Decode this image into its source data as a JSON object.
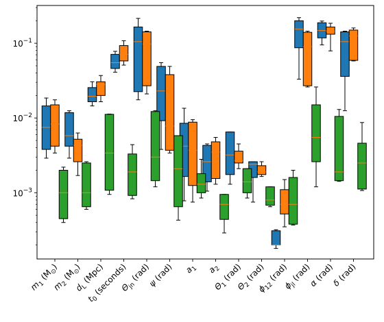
{
  "chart_data": {
    "type": "boxplot",
    "yscale": "log",
    "ylim": [
      0.00013,
      0.32
    ],
    "yticks": [
      {
        "value": 0.001,
        "base": "10",
        "exp": "−3"
      },
      {
        "value": 0.01,
        "base": "10",
        "exp": "−2"
      },
      {
        "value": 0.1,
        "base": "10",
        "exp": "−1"
      }
    ],
    "categories": [
      {
        "main": "m",
        "sub": "1",
        "rest": " (M",
        "sub2": "⊙",
        "end": ")"
      },
      {
        "main": "m",
        "sub": "2",
        "rest": " (M",
        "sub2": "⊙",
        "end": ")"
      },
      {
        "main": "d",
        "sub": "L",
        "rest": " (Mpc)",
        "sub2": "",
        "end": ""
      },
      {
        "main": "t",
        "sub": "0",
        "rest": " (seconds)",
        "sub2": "",
        "end": ""
      },
      {
        "main": "Θ",
        "sub": "jn",
        "rest": " (rad)",
        "sub2": "",
        "end": ""
      },
      {
        "main": "ψ",
        "sub": "",
        "rest": " (rad)",
        "sub2": "",
        "end": ""
      },
      {
        "main": "a",
        "sub": "1",
        "rest": "",
        "sub2": "",
        "end": ""
      },
      {
        "main": "a",
        "sub": "2",
        "rest": "",
        "sub2": "",
        "end": ""
      },
      {
        "main": "Θ",
        "sub": "1",
        "rest": " (rad)",
        "sub2": "",
        "end": ""
      },
      {
        "main": "Θ",
        "sub": "2",
        "rest": " (rad)",
        "sub2": "",
        "end": ""
      },
      {
        "main": "ϕ",
        "sub": "12",
        "rest": " (rad)",
        "sub2": "",
        "end": ""
      },
      {
        "main": "ϕ",
        "sub": "jl",
        "rest": " (rad)",
        "sub2": "",
        "end": ""
      },
      {
        "main": "α",
        "sub": "",
        "rest": " (rad)",
        "sub2": "",
        "end": ""
      },
      {
        "main": "δ",
        "sub": "",
        "rest": " (rad)",
        "sub2": "",
        "end": ""
      }
    ],
    "series": [
      {
        "color": "#1f77b4",
        "median_color": "#ff7f0e",
        "boxes": [
          {
            "whislo": 0.0029,
            "q1": 0.0038,
            "med": 0.0075,
            "q3": 0.0145,
            "whishi": 0.0185
          },
          {
            "whislo": 0.0029,
            "q1": 0.0042,
            "med": 0.0058,
            "q3": 0.0118,
            "whishi": 0.0125
          },
          {
            "whislo": 0.0145,
            "q1": 0.0165,
            "med": 0.0195,
            "q3": 0.0255,
            "whishi": 0.0305
          },
          {
            "whislo": 0.041,
            "q1": 0.046,
            "med": 0.055,
            "q3": 0.071,
            "whishi": 0.078
          },
          {
            "whislo": 0.0175,
            "q1": 0.0225,
            "med": 0.105,
            "q3": 0.165,
            "whishi": 0.215
          },
          {
            "whislo": 0.0038,
            "q1": 0.0092,
            "med": 0.023,
            "q3": 0.049,
            "whishi": 0.055
          },
          {
            "whislo": 0.00078,
            "q1": 0.00165,
            "med": 0.0042,
            "q3": 0.0085,
            "whishi": 0.0135
          },
          {
            "whislo": 0.00105,
            "q1": 0.0014,
            "med": 0.0026,
            "q3": 0.0043,
            "whishi": 0.0045
          },
          {
            "whislo": 0.0013,
            "q1": 0.00175,
            "med": 0.0032,
            "q3": 0.0065,
            "whishi": 0.0065
          },
          {
            "whislo": 0.00075,
            "q1": 0.0016,
            "med": 0.0024,
            "q3": 0.0026,
            "whishi": 0.0026
          },
          {
            "whislo": 0.00018,
            "q1": 0.0002,
            "med": 0.0002,
            "q3": 0.00031,
            "whishi": 0.00032
          },
          {
            "whislo": 0.033,
            "q1": 0.087,
            "med": 0.155,
            "q3": 0.2,
            "whishi": 0.22
          },
          {
            "whislo": 0.095,
            "q1": 0.118,
            "med": 0.148,
            "q3": 0.188,
            "whishi": 0.198
          },
          {
            "whislo": 0.0125,
            "q1": 0.036,
            "med": 0.105,
            "q3": 0.142,
            "whishi": 0.145
          }
        ]
      },
      {
        "color": "#ff7f0e",
        "median_color": "#ff7f0e",
        "boxes": [
          {
            "whislo": 0.0034,
            "q1": 0.0042,
            "med": 0.0083,
            "q3": 0.015,
            "whishi": 0.0175
          },
          {
            "whislo": 0.0017,
            "q1": 0.0026,
            "med": 0.0043,
            "q3": 0.0052,
            "whishi": 0.0063
          },
          {
            "whislo": 0.0165,
            "q1": 0.02,
            "med": 0.028,
            "q3": 0.0305,
            "whishi": 0.037
          },
          {
            "whislo": 0.051,
            "q1": 0.058,
            "med": 0.071,
            "q3": 0.093,
            "whishi": 0.108
          },
          {
            "whislo": 0.021,
            "q1": 0.027,
            "med": 0.098,
            "q3": 0.142,
            "whishi": 0.145
          },
          {
            "whislo": 0.0034,
            "q1": 0.0037,
            "med": 0.0078,
            "q3": 0.038,
            "whishi": 0.049
          },
          {
            "whislo": 0.00075,
            "q1": 0.00125,
            "med": 0.0037,
            "q3": 0.0088,
            "whishi": 0.0095
          },
          {
            "whislo": 0.0013,
            "q1": 0.00155,
            "med": 0.0035,
            "q3": 0.0048,
            "whishi": 0.0055
          },
          {
            "whislo": 0.0021,
            "q1": 0.0025,
            "med": 0.0027,
            "q3": 0.0036,
            "whishi": 0.0045
          },
          {
            "whislo": 0.00165,
            "q1": 0.00175,
            "med": 0.0019,
            "q3": 0.0023,
            "whishi": 0.0026
          },
          {
            "whislo": 0.00035,
            "q1": 0.00052,
            "med": 0.0007,
            "q3": 0.0011,
            "whishi": 0.0015
          },
          {
            "whislo": 0.026,
            "q1": 0.027,
            "med": 0.09,
            "q3": 0.14,
            "whishi": 0.145
          },
          {
            "whislo": 0.079,
            "q1": 0.132,
            "med": 0.145,
            "q3": 0.165,
            "whishi": 0.185
          },
          {
            "whislo": 0.058,
            "q1": 0.059,
            "med": 0.125,
            "q3": 0.15,
            "whishi": 0.16
          }
        ]
      },
      {
        "color": "#2ca02c",
        "median_color": "#ff7f0e",
        "boxes": [
          {
            "whislo": 0.0004,
            "q1": 0.00045,
            "med": 0.001,
            "q3": 0.002,
            "whishi": 0.0022
          },
          {
            "whislo": 0.0006,
            "q1": 0.00065,
            "med": 0.001,
            "q3": 0.0025,
            "whishi": 0.0026
          },
          {
            "whislo": 0.00095,
            "q1": 0.00108,
            "med": 0.0034,
            "q3": 0.0112,
            "whishi": 0.0113
          },
          {
            "whislo": 0.00083,
            "q1": 0.00092,
            "med": 0.0019,
            "q3": 0.0033,
            "whishi": 0.0044
          },
          {
            "whislo": 0.0012,
            "q1": 0.00145,
            "med": 0.003,
            "q3": 0.0122,
            "whishi": 0.0125
          },
          {
            "whislo": 0.00043,
            "q1": 0.00065,
            "med": 0.0021,
            "q3": 0.0058,
            "whishi": 0.0058
          },
          {
            "whislo": 0.00085,
            "q1": 0.001,
            "med": 0.0013,
            "q3": 0.0018,
            "whishi": 0.0028
          },
          {
            "whislo": 0.00029,
            "q1": 0.00044,
            "med": 0.0007,
            "q3": 0.00095,
            "whishi": 0.00095
          },
          {
            "whislo": 0.00085,
            "q1": 0.001,
            "med": 0.0014,
            "q3": 0.0021,
            "whishi": 0.0021
          },
          {
            "whislo": 0.00065,
            "q1": 0.00068,
            "med": 0.0008,
            "q3": 0.0012,
            "whishi": 0.0012
          },
          {
            "whislo": 0.00037,
            "q1": 0.00038,
            "med": 0.0007,
            "q3": 0.0016,
            "whishi": 0.002
          },
          {
            "whislo": 0.0012,
            "q1": 0.0026,
            "med": 0.0055,
            "q3": 0.015,
            "whishi": 0.026
          },
          {
            "whislo": 0.00142,
            "q1": 0.00145,
            "med": 0.0019,
            "q3": 0.0105,
            "whishi": 0.013
          },
          {
            "whislo": 0.00107,
            "q1": 0.00112,
            "med": 0.0025,
            "q3": 0.0046,
            "whishi": 0.0087
          }
        ]
      }
    ]
  }
}
